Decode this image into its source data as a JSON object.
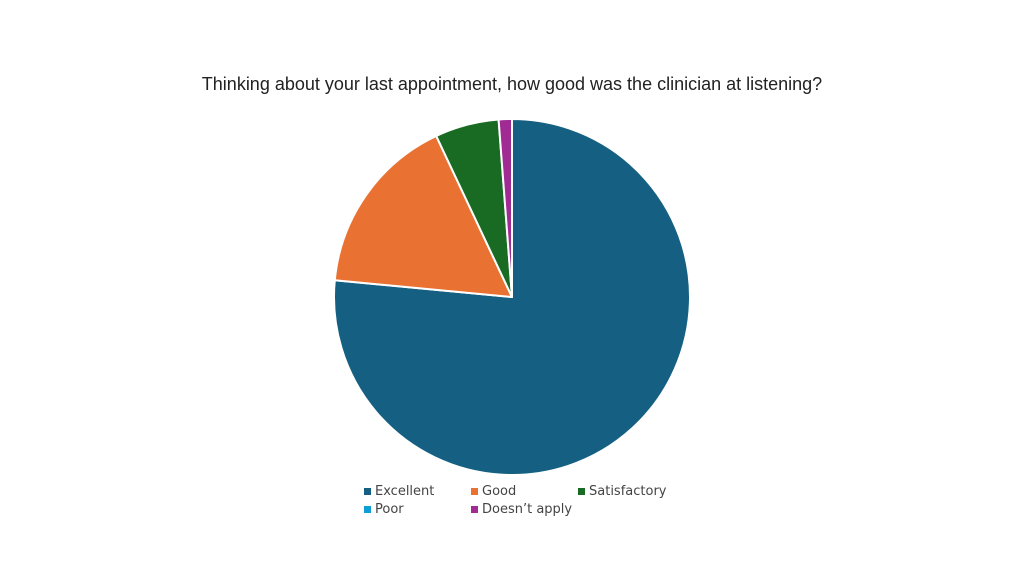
{
  "chart_data": {
    "type": "pie",
    "title": "Thinking about your last appointment, how good was the clinician at listening?",
    "categories": [
      "Excellent",
      "Good",
      "Satisfactory",
      "Poor",
      "Doesn’t apply"
    ],
    "values": [
      76.5,
      16.5,
      5.8,
      0.0,
      1.2
    ],
    "colors": [
      "#156082",
      "#E97132",
      "#196B24",
      "#0F9ED5",
      "#A02B93"
    ],
    "legend_position": "bottom"
  }
}
